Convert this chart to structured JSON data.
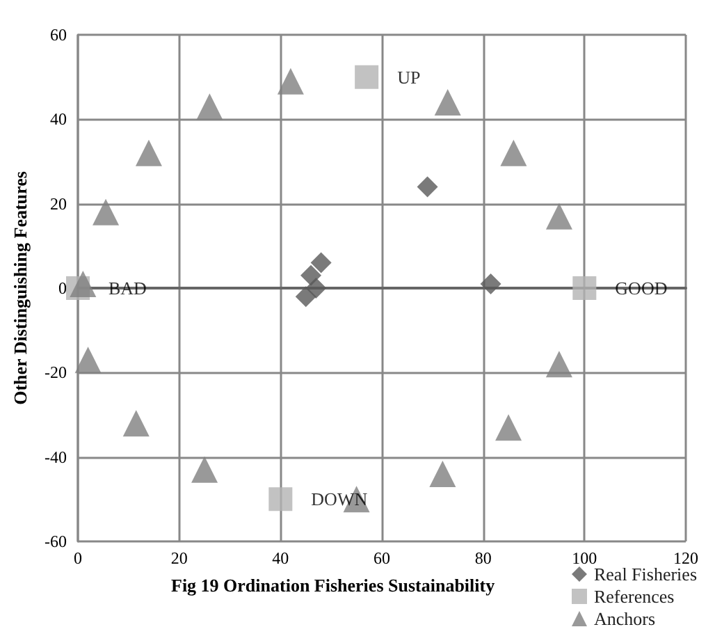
{
  "chart_data": {
    "type": "scatter",
    "title": "Fig 19 Ordination Fisheries Sustainability",
    "ylabel": "Other Distinguishing Features",
    "xlim": [
      0,
      120
    ],
    "xticks": [
      0,
      20,
      40,
      60,
      80,
      100,
      120
    ],
    "ylim": [
      -60,
      60
    ],
    "yticks": [
      -60,
      -40,
      -20,
      0,
      20,
      40,
      60
    ],
    "grid": true,
    "legend": "bottom right",
    "series": [
      {
        "name": "Real Fisheries",
        "color": "#595959",
        "marker": "diamond",
        "x": [
          48,
          46,
          47,
          45,
          69,
          81.5
        ],
        "values": [
          6,
          3,
          0,
          -2,
          24,
          1
        ]
      },
      {
        "name": "References",
        "color": "#b3b3b3",
        "marker": "square",
        "x": [
          0,
          100,
          57,
          40
        ],
        "values": [
          0,
          0,
          50,
          -50
        ]
      },
      {
        "name": "Anchors",
        "color": "#7f7f7f",
        "marker": "triangle",
        "x": [
          1,
          5.5,
          14,
          26,
          42,
          73,
          86,
          95,
          95,
          85,
          72,
          55,
          25,
          11.5,
          2
        ],
        "values": [
          1,
          18,
          32,
          43,
          49,
          44,
          32,
          17,
          -18,
          -33,
          -44,
          -50,
          -43,
          -32,
          -17
        ]
      }
    ],
    "annotations": [
      {
        "text": "BAD",
        "x": 0,
        "y": 0
      },
      {
        "text": "GOOD",
        "x": 100,
        "y": 0
      },
      {
        "text": "UP",
        "x": 57,
        "y": 50
      },
      {
        "text": "DOWN",
        "x": 40,
        "y": -50
      }
    ]
  }
}
